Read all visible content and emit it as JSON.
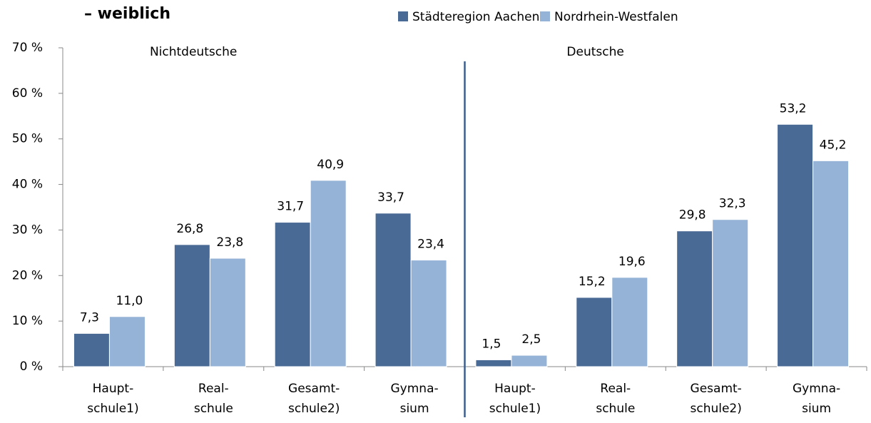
{
  "chart_data": {
    "type": "bar",
    "title": "– weiblich",
    "categories": [
      [
        "Haupt-",
        "schule1)"
      ],
      [
        "Real-",
        "schule"
      ],
      [
        "Gesamt-",
        "schule2)"
      ],
      [
        "Gymna-",
        "sium"
      ],
      [
        "Haupt-",
        "schule1)"
      ],
      [
        "Real-",
        "schule"
      ],
      [
        "Gesamt-",
        "schule2)"
      ],
      [
        "Gymna-",
        "sium"
      ]
    ],
    "annotations": [
      "Nichtdeutsche",
      "Deutsche"
    ],
    "series": [
      {
        "name": "Städteregion Aachen",
        "color": "#4a6a96",
        "values": [
          7.3,
          26.8,
          31.7,
          33.7,
          1.5,
          15.2,
          29.8,
          53.2
        ],
        "value_labels": [
          "7,3",
          "26,8",
          "31,7",
          "33,7",
          "1,5",
          "15,2",
          "29,8",
          "53,2"
        ]
      },
      {
        "name": "Nordrhein-Westfalen",
        "color": "#95b3d7",
        "values": [
          11.0,
          23.8,
          40.9,
          23.4,
          2.5,
          19.6,
          32.3,
          45.2
        ],
        "value_labels": [
          "11,0",
          "23,8",
          "40,9",
          "23,4",
          "2,5",
          "19,6",
          "32,3",
          "45,2"
        ]
      }
    ],
    "ylim": [
      0,
      70
    ],
    "yticks": [
      {
        "value": 0,
        "label": "0 %"
      },
      {
        "value": 10,
        "label": "10 %"
      },
      {
        "value": 20,
        "label": "20 %"
      },
      {
        "value": 30,
        "label": "30 %"
      },
      {
        "value": 40,
        "label": "40 %"
      },
      {
        "value": 50,
        "label": "50 %"
      },
      {
        "value": 60,
        "label": "60 %"
      },
      {
        "value": 70,
        "label": "70 %"
      }
    ],
    "legend": "top-right"
  }
}
